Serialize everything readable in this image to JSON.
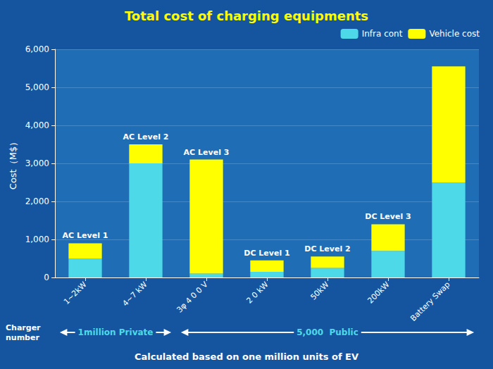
{
  "chart_data": {
    "type": "bar",
    "stacked": true,
    "title": "Total cost of charging equipments",
    "y_label": "Cost（M$）",
    "categories": [
      "1~2kW",
      "4~7 kW",
      "3φ 4 0 0 V",
      "2 0 kW",
      "50kW",
      "200kW",
      "Battery Swap"
    ],
    "series": [
      {
        "name": "Infra cont",
        "color": "#4dd9e8",
        "values": [
          500,
          3000,
          100,
          150,
          250,
          700,
          2500
        ]
      },
      {
        "name": "Vehicle cost",
        "color": "#FFFF00",
        "values": [
          400,
          500,
          3000,
          300,
          300,
          700,
          3050
        ]
      }
    ],
    "ylim": [
      0,
      6000
    ],
    "yticks": [
      0,
      {
        "value": 1000,
        "label": "1,000"
      },
      {
        "value": 2000,
        "label": "2,000"
      },
      {
        "value": 3000,
        "label": "3,000"
      },
      {
        "value": 4000,
        "label": "4,000"
      },
      {
        "value": 5000,
        "label": "5,000"
      },
      {
        "value": 6000,
        "label": "6,000"
      }
    ],
    "grid": true,
    "legend": "upper right",
    "annotations": [
      "AC Level 1",
      "AC Level 2",
      "AC Level 3",
      "DC Level 1",
      "DC Level 2",
      "DC Level 3"
    ],
    "group_label": "Charger\nnumber",
    "groups": [
      {
        "text": "1million Private",
        "from": "1~2kW",
        "to": "4~7 kW"
      },
      {
        "text": "5,000  Public",
        "from": "3φ 4 0 0 V",
        "to": "Battery Swap"
      }
    ],
    "footnote": "Calculated based on one million units of EV"
  }
}
